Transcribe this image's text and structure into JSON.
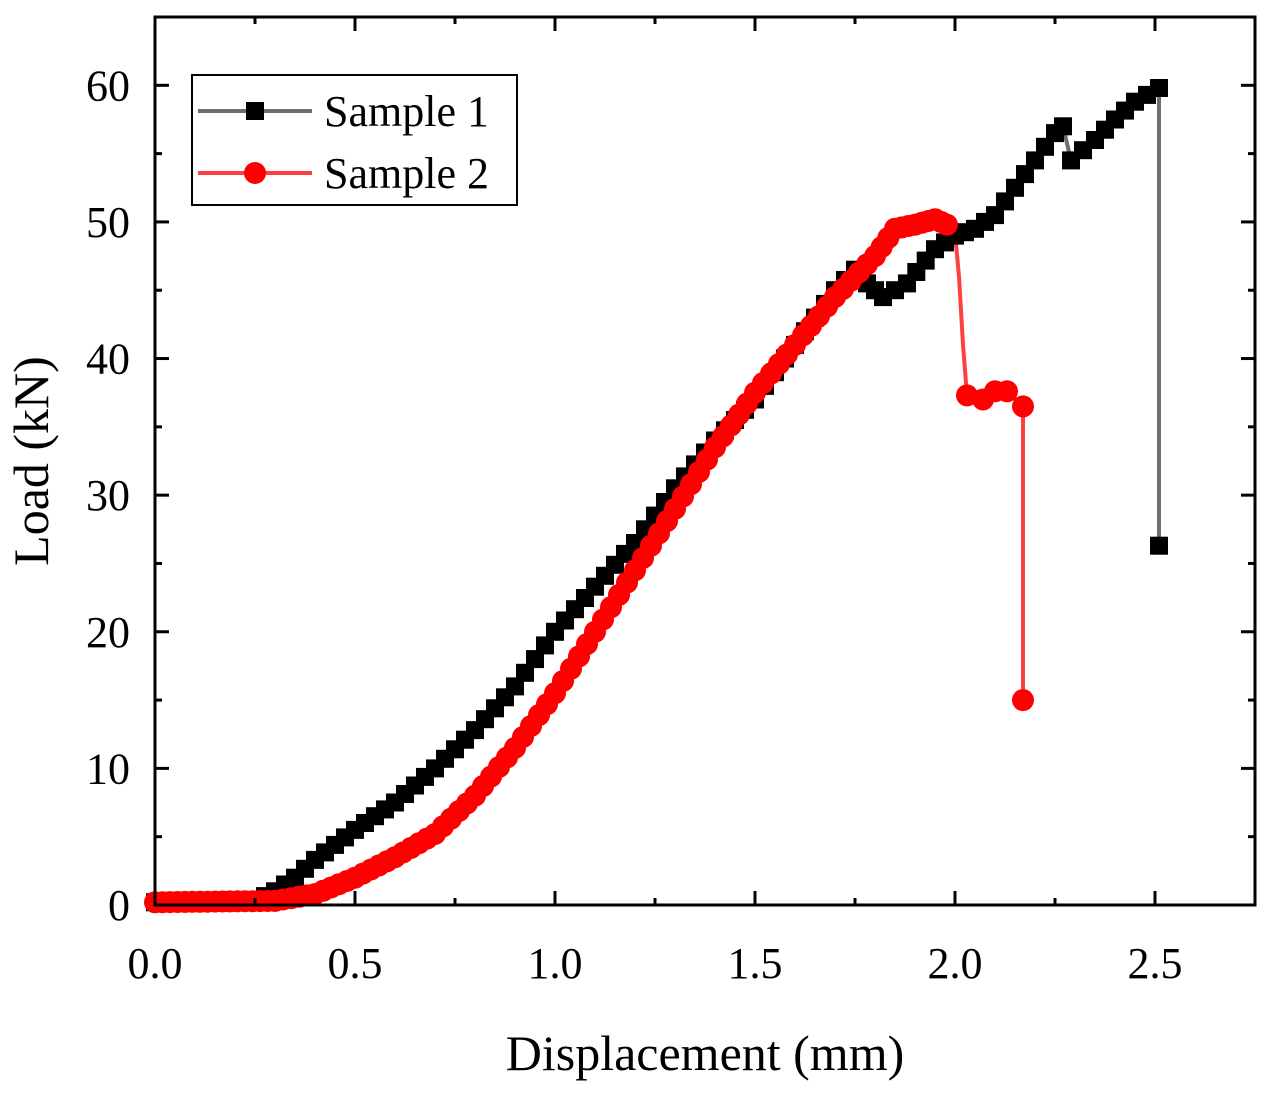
{
  "chart_data": {
    "type": "line",
    "xlabel": "Displacement (mm)",
    "ylabel": "Load (kN)",
    "xlim": [
      0.0,
      2.75
    ],
    "ylim": [
      0,
      65
    ],
    "xticks": [
      "0.0",
      "0.5",
      "1.0",
      "1.5",
      "2.0",
      "2.5"
    ],
    "yticks": [
      "0",
      "10",
      "20",
      "30",
      "40",
      "50",
      "60"
    ],
    "grid": false,
    "legend_position": "top-left",
    "series": [
      {
        "name": "Sample 1",
        "color": "#000000",
        "line_color": "#6e6e6e",
        "marker": "square",
        "points": [
          [
            0.0,
            0.2
          ],
          [
            0.25,
            0.3
          ],
          [
            0.3,
            1.0
          ],
          [
            0.35,
            2.0
          ],
          [
            0.4,
            3.3
          ],
          [
            0.5,
            5.5
          ],
          [
            0.6,
            7.5
          ],
          [
            0.7,
            10.0
          ],
          [
            0.8,
            12.8
          ],
          [
            0.9,
            16.0
          ],
          [
            1.0,
            20.0
          ],
          [
            1.1,
            23.3
          ],
          [
            1.2,
            26.5
          ],
          [
            1.3,
            30.5
          ],
          [
            1.4,
            34.0
          ],
          [
            1.5,
            37.0
          ],
          [
            1.6,
            41.0
          ],
          [
            1.7,
            45.0
          ],
          [
            1.75,
            46.5
          ],
          [
            1.78,
            45.5
          ],
          [
            1.82,
            44.5
          ],
          [
            1.88,
            45.5
          ],
          [
            1.95,
            48.0
          ],
          [
            2.0,
            49.0
          ],
          [
            2.05,
            49.5
          ],
          [
            2.1,
            50.5
          ],
          [
            2.15,
            52.5
          ],
          [
            2.2,
            54.5
          ],
          [
            2.25,
            56.5
          ],
          [
            2.27,
            57.0
          ],
          [
            2.29,
            54.5
          ],
          [
            2.35,
            56.0
          ],
          [
            2.4,
            57.5
          ],
          [
            2.45,
            58.8
          ],
          [
            2.51,
            59.8
          ],
          [
            2.51,
            26.3
          ]
        ]
      },
      {
        "name": "Sample 2",
        "color": "#ff0000",
        "line_color": "#ff4040",
        "marker": "circle",
        "points": [
          [
            0.0,
            0.2
          ],
          [
            0.3,
            0.3
          ],
          [
            0.4,
            0.8
          ],
          [
            0.5,
            2.0
          ],
          [
            0.6,
            3.5
          ],
          [
            0.7,
            5.2
          ],
          [
            0.8,
            8.0
          ],
          [
            0.9,
            11.5
          ],
          [
            1.0,
            15.5
          ],
          [
            1.1,
            20.0
          ],
          [
            1.2,
            24.5
          ],
          [
            1.3,
            29.0
          ],
          [
            1.4,
            33.5
          ],
          [
            1.5,
            37.5
          ],
          [
            1.6,
            41.0
          ],
          [
            1.7,
            44.5
          ],
          [
            1.8,
            47.5
          ],
          [
            1.85,
            49.5
          ],
          [
            1.9,
            49.8
          ],
          [
            1.95,
            50.2
          ],
          [
            1.98,
            49.8
          ],
          [
            2.0,
            49.2
          ],
          [
            2.01,
            46.0
          ],
          [
            2.02,
            41.0
          ],
          [
            2.03,
            37.3
          ],
          [
            2.07,
            37.2
          ],
          [
            2.1,
            37.6
          ],
          [
            2.13,
            37.6
          ],
          [
            2.17,
            36.5
          ],
          [
            2.17,
            15.0
          ]
        ]
      }
    ]
  }
}
